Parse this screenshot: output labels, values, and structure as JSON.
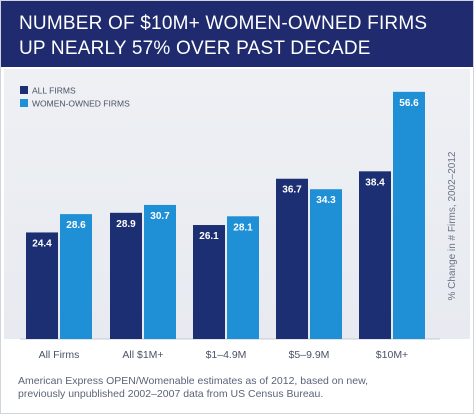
{
  "header": {
    "title_line1": "NUMBER OF $10M+ WOMEN-OWNED FIRMS",
    "title_line2": "UP NEARLY 57% OVER PAST DECADE"
  },
  "footnote": {
    "line1": "American Express OPEN/Womenable estimates as of 2012, based on new,",
    "line2": "previously unpublished 2002–2007 data from US Census Bureau."
  },
  "colors": {
    "header_bg": "#1f2b6e",
    "all_firms": "#1d2f73",
    "women_owned": "#1f8fd6"
  },
  "chart_data": {
    "type": "bar",
    "categories": [
      "All Firms",
      "All $1M+",
      "$1–4.9M",
      "$5–9.9M",
      "$10M+"
    ],
    "series": [
      {
        "name": "ALL FIRMS",
        "values": [
          24.4,
          28.9,
          26.1,
          36.7,
          38.4
        ],
        "color": "#1d2f73"
      },
      {
        "name": "WOMEN-OWNED FIRMS",
        "values": [
          28.6,
          30.7,
          28.1,
          34.3,
          56.6
        ],
        "color": "#1f8fd6"
      }
    ],
    "title": "NUMBER OF $10M+ WOMEN-OWNED FIRMS UP NEARLY 57% OVER PAST DECADE",
    "ylabel": "% Change in # Firms, 2002–2012",
    "ylim": [
      0,
      60
    ],
    "grid": false,
    "legend": "top-left"
  }
}
